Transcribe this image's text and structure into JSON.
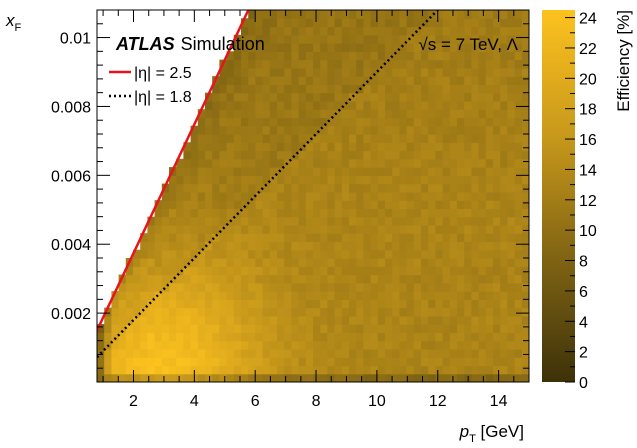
{
  "chart_data": {
    "type": "heatmap",
    "title": "",
    "experiment_label": "ATLAS",
    "experiment_sublabel": "Simulation",
    "energy_label": "√s = 7 TeV, Λ",
    "xlabel": "p_T [GeV]",
    "ylabel": "x_F",
    "zlabel": "Efficiency [%]",
    "xlim": [
      0.8,
      15
    ],
    "ylim": [
      0,
      0.0108
    ],
    "zlim": [
      0,
      24.5
    ],
    "x_ticks": [
      "2",
      "4",
      "6",
      "8",
      "10",
      "12",
      "14"
    ],
    "y_ticks": [
      "0.002",
      "0.004",
      "0.006",
      "0.008",
      "0.01"
    ],
    "z_ticks": [
      "0",
      "2",
      "4",
      "6",
      "8",
      "10",
      "12",
      "14",
      "16",
      "18",
      "20",
      "22",
      "24"
    ],
    "x_tick_values": [
      2,
      4,
      6,
      8,
      10,
      12,
      14
    ],
    "y_tick_values": [
      0.002,
      0.004,
      0.006,
      0.008,
      0.01
    ],
    "z_tick_values": [
      0,
      2,
      4,
      6,
      8,
      10,
      12,
      14,
      16,
      18,
      20,
      22,
      24
    ],
    "bins": {
      "nx": 60,
      "ny": 45
    },
    "acceptance_boundary": "pT > xF / 0.00187",
    "efficiency_model": {
      "peak_pT": 3.0,
      "peak_xF": 0.0003,
      "peak_value": 24,
      "plateau_value": 13
    },
    "series": [
      {
        "name": "|η| = 2.5",
        "style": "solid",
        "color": "#e8141d",
        "slope": 0.00187
      },
      {
        "name": "|η| = 1.8",
        "style": "dotted",
        "color": "#000000",
        "slope": 0.0009
      }
    ],
    "colormap": [
      "#3d3108",
      "#5e4b0f",
      "#806413",
      "#a57f17",
      "#c8991b",
      "#e3ad1d",
      "#fcc21e"
    ],
    "colors": {
      "background": "#ffffff",
      "axis": "#000000",
      "empty_region": "#ffffff"
    }
  }
}
